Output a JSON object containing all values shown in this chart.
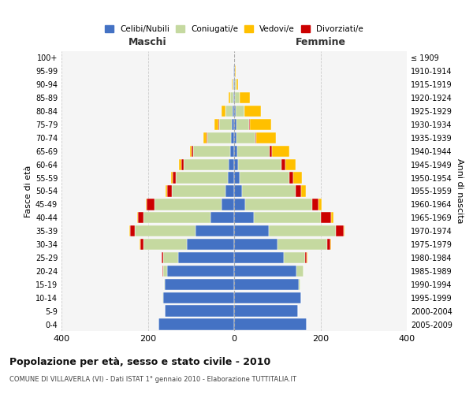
{
  "age_groups": [
    "0-4",
    "5-9",
    "10-14",
    "15-19",
    "20-24",
    "25-29",
    "30-34",
    "35-39",
    "40-44",
    "45-49",
    "50-54",
    "55-59",
    "60-64",
    "65-69",
    "70-74",
    "75-79",
    "80-84",
    "85-89",
    "90-94",
    "95-99",
    "100+"
  ],
  "birth_years": [
    "2005-2009",
    "2000-2004",
    "1995-1999",
    "1990-1994",
    "1985-1989",
    "1980-1984",
    "1975-1979",
    "1970-1974",
    "1965-1969",
    "1960-1964",
    "1955-1959",
    "1950-1954",
    "1945-1949",
    "1940-1944",
    "1935-1939",
    "1930-1934",
    "1925-1929",
    "1920-1924",
    "1915-1919",
    "1910-1914",
    "≤ 1909"
  ],
  "maschi": {
    "celibi": [
      175,
      160,
      165,
      160,
      155,
      130,
      110,
      90,
      55,
      30,
      20,
      15,
      12,
      10,
      8,
      5,
      3,
      2,
      1,
      1,
      0
    ],
    "coniugati": [
      0,
      0,
      1,
      3,
      10,
      35,
      100,
      140,
      155,
      155,
      125,
      120,
      105,
      85,
      55,
      30,
      18,
      8,
      3,
      1,
      0
    ],
    "vedovi": [
      0,
      0,
      0,
      0,
      1,
      0,
      1,
      1,
      2,
      2,
      3,
      3,
      5,
      5,
      8,
      10,
      8,
      3,
      1,
      0,
      0
    ],
    "divorziati": [
      0,
      0,
      0,
      0,
      1,
      3,
      8,
      12,
      12,
      18,
      10,
      8,
      5,
      3,
      1,
      1,
      0,
      0,
      0,
      0,
      0
    ]
  },
  "femmine": {
    "nubili": [
      168,
      148,
      155,
      150,
      145,
      115,
      100,
      80,
      45,
      25,
      18,
      12,
      10,
      8,
      5,
      5,
      3,
      2,
      1,
      1,
      0
    ],
    "coniugate": [
      0,
      0,
      1,
      4,
      15,
      50,
      115,
      155,
      155,
      155,
      125,
      115,
      100,
      75,
      45,
      30,
      20,
      10,
      4,
      1,
      0
    ],
    "vedove": [
      0,
      0,
      0,
      0,
      0,
      1,
      2,
      3,
      5,
      8,
      12,
      20,
      25,
      40,
      45,
      50,
      40,
      25,
      5,
      1,
      0
    ],
    "divorziate": [
      0,
      0,
      0,
      0,
      1,
      3,
      8,
      18,
      25,
      15,
      12,
      10,
      8,
      5,
      2,
      1,
      0,
      0,
      0,
      0,
      0
    ]
  },
  "colors": {
    "celibi_nubili": "#4472c4",
    "coniugati": "#c5d9a0",
    "vedovi": "#ffc000",
    "divorziati": "#cc0000"
  },
  "title": "Popolazione per età, sesso e stato civile - 2010",
  "subtitle": "COMUNE DI VILLAVERLA (VI) - Dati ISTAT 1° gennaio 2010 - Elaborazione TUTTITALIA.IT",
  "xlabel_left": "Maschi",
  "xlabel_right": "Femmine",
  "ylabel_left": "Fasce di età",
  "ylabel_right": "Anni di nascita",
  "xlim": 400,
  "legend_labels": [
    "Celibi/Nubili",
    "Coniugati/e",
    "Vedovi/e",
    "Divorziati/e"
  ],
  "background_color": "#f5f5f5",
  "bar_height": 0.85
}
